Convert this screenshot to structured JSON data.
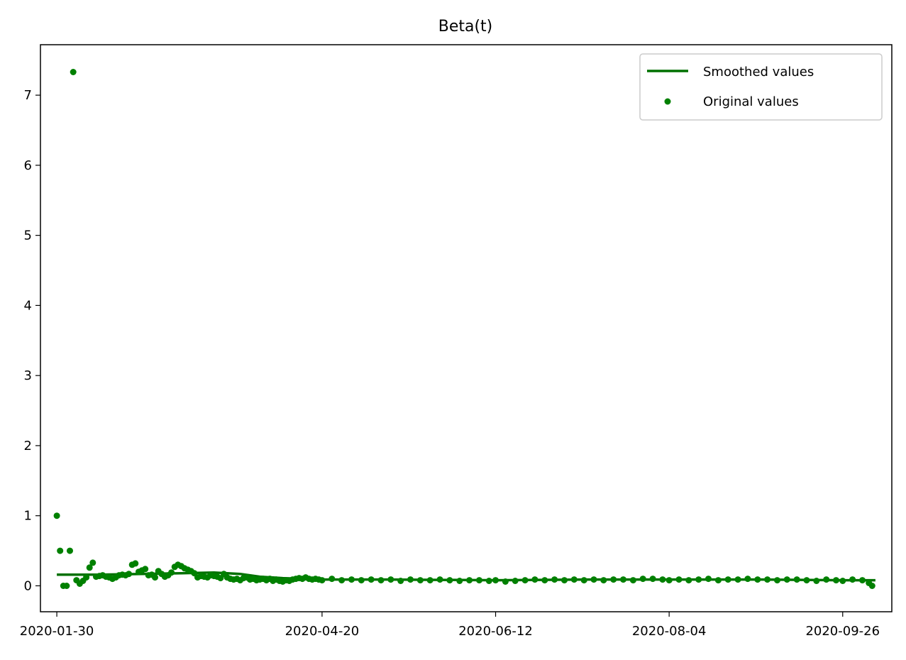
{
  "chart_data": {
    "type": "scatter",
    "title": "Beta(t)",
    "xlabel": "",
    "ylabel": "",
    "grid": false,
    "legend_position": "top-right",
    "colors": {
      "series": "#008000",
      "smoothed": "#007000"
    },
    "x_range": [
      "2020-01-25",
      "2020-10-11"
    ],
    "ylim": [
      -0.37,
      7.72
    ],
    "x_tick_labels": [
      "2020-01-30",
      "2020-04-20",
      "2020-06-12",
      "2020-08-04",
      "2020-09-26"
    ],
    "y_tick_labels": [
      "0",
      "1",
      "2",
      "3",
      "4",
      "5",
      "6",
      "7"
    ],
    "y_ticks": [
      0,
      1,
      2,
      3,
      4,
      5,
      6,
      7
    ],
    "series": [
      {
        "name": "Smoothed values",
        "kind": "line",
        "points": [
          [
            "2020-01-30",
            0.16
          ],
          [
            "2020-02-12",
            0.16
          ],
          [
            "2020-02-25",
            0.17
          ],
          [
            "2020-03-08",
            0.18
          ],
          [
            "2020-03-18",
            0.19
          ],
          [
            "2020-03-26",
            0.17
          ],
          [
            "2020-04-01",
            0.13
          ],
          [
            "2020-04-08",
            0.11
          ],
          [
            "2020-04-20",
            0.09
          ],
          [
            "2020-05-10",
            0.09
          ],
          [
            "2020-06-12",
            0.08
          ],
          [
            "2020-07-10",
            0.09
          ],
          [
            "2020-08-04",
            0.09
          ],
          [
            "2020-09-01",
            0.09
          ],
          [
            "2020-09-26",
            0.08
          ],
          [
            "2020-10-06",
            0.08
          ]
        ]
      },
      {
        "name": "Original values",
        "kind": "points",
        "points": [
          [
            "2020-01-30",
            1.0
          ],
          [
            "2020-01-31",
            0.5
          ],
          [
            "2020-02-01",
            0.0
          ],
          [
            "2020-02-02",
            0.0
          ],
          [
            "2020-02-03",
            0.5
          ],
          [
            "2020-02-04",
            7.33
          ],
          [
            "2020-02-05",
            0.08
          ],
          [
            "2020-02-06",
            0.03
          ],
          [
            "2020-02-07",
            0.07
          ],
          [
            "2020-02-08",
            0.12
          ],
          [
            "2020-02-09",
            0.26
          ],
          [
            "2020-02-10",
            0.33
          ],
          [
            "2020-02-11",
            0.13
          ],
          [
            "2020-02-12",
            0.14
          ],
          [
            "2020-02-13",
            0.15
          ],
          [
            "2020-02-14",
            0.13
          ],
          [
            "2020-02-15",
            0.12
          ],
          [
            "2020-02-16",
            0.1
          ],
          [
            "2020-02-17",
            0.12
          ],
          [
            "2020-02-18",
            0.15
          ],
          [
            "2020-02-19",
            0.16
          ],
          [
            "2020-02-20",
            0.15
          ],
          [
            "2020-02-21",
            0.17
          ],
          [
            "2020-02-22",
            0.3
          ],
          [
            "2020-02-23",
            0.32
          ],
          [
            "2020-02-24",
            0.2
          ],
          [
            "2020-02-25",
            0.22
          ],
          [
            "2020-02-26",
            0.24
          ],
          [
            "2020-02-27",
            0.15
          ],
          [
            "2020-02-28",
            0.16
          ],
          [
            "2020-02-29",
            0.12
          ],
          [
            "2020-03-01",
            0.21
          ],
          [
            "2020-03-02",
            0.17
          ],
          [
            "2020-03-03",
            0.13
          ],
          [
            "2020-03-04",
            0.15
          ],
          [
            "2020-03-05",
            0.19
          ],
          [
            "2020-03-06",
            0.27
          ],
          [
            "2020-03-07",
            0.3
          ],
          [
            "2020-03-08",
            0.28
          ],
          [
            "2020-03-09",
            0.25
          ],
          [
            "2020-03-10",
            0.23
          ],
          [
            "2020-03-11",
            0.21
          ],
          [
            "2020-03-12",
            0.18
          ],
          [
            "2020-03-13",
            0.12
          ],
          [
            "2020-03-14",
            0.14
          ],
          [
            "2020-03-15",
            0.13
          ],
          [
            "2020-03-16",
            0.12
          ],
          [
            "2020-03-17",
            0.15
          ],
          [
            "2020-03-18",
            0.14
          ],
          [
            "2020-03-19",
            0.13
          ],
          [
            "2020-03-20",
            0.11
          ],
          [
            "2020-03-21",
            0.17
          ],
          [
            "2020-03-22",
            0.12
          ],
          [
            "2020-03-23",
            0.1
          ],
          [
            "2020-03-24",
            0.09
          ],
          [
            "2020-03-25",
            0.1
          ],
          [
            "2020-03-26",
            0.08
          ],
          [
            "2020-03-27",
            0.11
          ],
          [
            "2020-03-28",
            0.12
          ],
          [
            "2020-03-29",
            0.09
          ],
          [
            "2020-03-30",
            0.1
          ],
          [
            "2020-03-31",
            0.08
          ],
          [
            "2020-04-01",
            0.09
          ],
          [
            "2020-04-02",
            0.1
          ],
          [
            "2020-04-03",
            0.08
          ],
          [
            "2020-04-04",
            0.1
          ],
          [
            "2020-04-05",
            0.07
          ],
          [
            "2020-04-06",
            0.09
          ],
          [
            "2020-04-07",
            0.07
          ],
          [
            "2020-04-08",
            0.06
          ],
          [
            "2020-04-09",
            0.08
          ],
          [
            "2020-04-10",
            0.07
          ],
          [
            "2020-04-11",
            0.09
          ],
          [
            "2020-04-12",
            0.1
          ],
          [
            "2020-04-13",
            0.11
          ],
          [
            "2020-04-14",
            0.1
          ],
          [
            "2020-04-15",
            0.12
          ],
          [
            "2020-04-16",
            0.1
          ],
          [
            "2020-04-17",
            0.09
          ],
          [
            "2020-04-18",
            0.1
          ],
          [
            "2020-04-19",
            0.09
          ],
          [
            "2020-04-20",
            0.08
          ],
          [
            "2020-04-23",
            0.1
          ],
          [
            "2020-04-26",
            0.08
          ],
          [
            "2020-04-29",
            0.09
          ],
          [
            "2020-05-02",
            0.08
          ],
          [
            "2020-05-05",
            0.09
          ],
          [
            "2020-05-08",
            0.08
          ],
          [
            "2020-05-11",
            0.09
          ],
          [
            "2020-05-14",
            0.07
          ],
          [
            "2020-05-17",
            0.09
          ],
          [
            "2020-05-20",
            0.08
          ],
          [
            "2020-05-23",
            0.08
          ],
          [
            "2020-05-26",
            0.09
          ],
          [
            "2020-05-29",
            0.08
          ],
          [
            "2020-06-01",
            0.07
          ],
          [
            "2020-06-04",
            0.08
          ],
          [
            "2020-06-07",
            0.08
          ],
          [
            "2020-06-10",
            0.07
          ],
          [
            "2020-06-12",
            0.08
          ],
          [
            "2020-06-15",
            0.06
          ],
          [
            "2020-06-18",
            0.07
          ],
          [
            "2020-06-21",
            0.08
          ],
          [
            "2020-06-24",
            0.09
          ],
          [
            "2020-06-27",
            0.08
          ],
          [
            "2020-06-30",
            0.09
          ],
          [
            "2020-07-03",
            0.08
          ],
          [
            "2020-07-06",
            0.09
          ],
          [
            "2020-07-09",
            0.08
          ],
          [
            "2020-07-12",
            0.09
          ],
          [
            "2020-07-15",
            0.08
          ],
          [
            "2020-07-18",
            0.09
          ],
          [
            "2020-07-21",
            0.09
          ],
          [
            "2020-07-24",
            0.08
          ],
          [
            "2020-07-27",
            0.1
          ],
          [
            "2020-07-30",
            0.1
          ],
          [
            "2020-08-02",
            0.09
          ],
          [
            "2020-08-04",
            0.08
          ],
          [
            "2020-08-07",
            0.09
          ],
          [
            "2020-08-10",
            0.08
          ],
          [
            "2020-08-13",
            0.09
          ],
          [
            "2020-08-16",
            0.1
          ],
          [
            "2020-08-19",
            0.08
          ],
          [
            "2020-08-22",
            0.09
          ],
          [
            "2020-08-25",
            0.09
          ],
          [
            "2020-08-28",
            0.1
          ],
          [
            "2020-08-31",
            0.09
          ],
          [
            "2020-09-03",
            0.09
          ],
          [
            "2020-09-06",
            0.08
          ],
          [
            "2020-09-09",
            0.09
          ],
          [
            "2020-09-12",
            0.09
          ],
          [
            "2020-09-15",
            0.08
          ],
          [
            "2020-09-18",
            0.07
          ],
          [
            "2020-09-21",
            0.09
          ],
          [
            "2020-09-24",
            0.08
          ],
          [
            "2020-09-26",
            0.07
          ],
          [
            "2020-09-29",
            0.09
          ],
          [
            "2020-10-02",
            0.08
          ],
          [
            "2020-10-04",
            0.04
          ],
          [
            "2020-10-05",
            0.0
          ]
        ]
      }
    ]
  }
}
